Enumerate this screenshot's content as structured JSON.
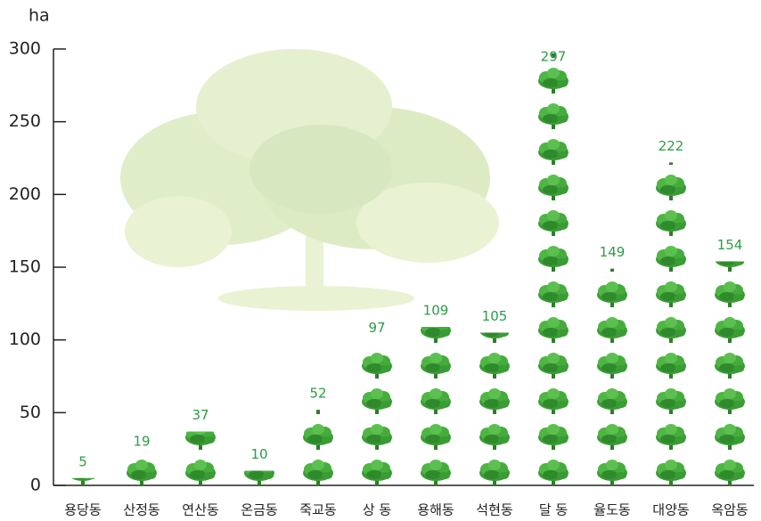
{
  "chart_data": {
    "type": "pictograph",
    "y_label": "ha",
    "categories": [
      "용당동",
      "산정동",
      "연산동",
      "온금동",
      "죽교동",
      "상  동",
      "용해동",
      "석현동",
      "달  동",
      "율도동",
      "대양동",
      "옥암동"
    ],
    "values": [
      5,
      19,
      37,
      10,
      52,
      97,
      109,
      105,
      297,
      149,
      222,
      154
    ],
    "color": "#3a9c34",
    "ylim": [
      0,
      300
    ],
    "yticks": [
      0,
      50,
      100,
      150,
      200,
      250,
      300
    ]
  }
}
